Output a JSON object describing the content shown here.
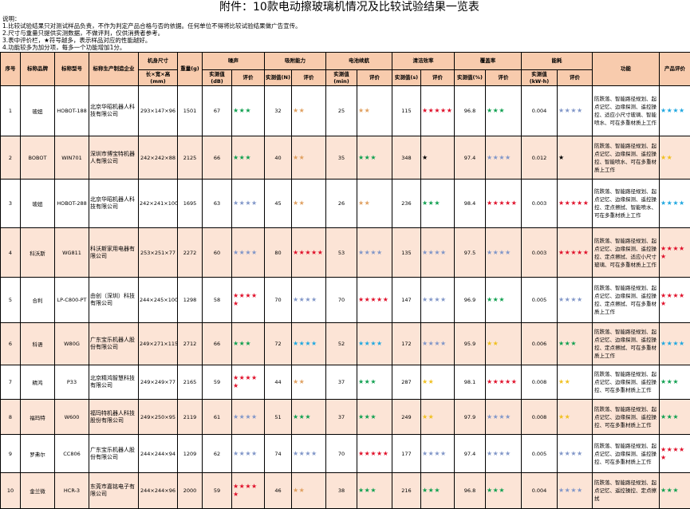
{
  "title": "附件：10款电动擦玻璃机情况及比较试验结果一览表",
  "notes": [
    "说明：",
    "1.比较试验结果只对测试样品负责，不作为判定产品合格与否的依据。任何单位不得将比较试验结果做广告宣传。",
    "2.尺寸与重量只提供实测数据，不做评判，仅供消费者参考。",
    "3.表中评价栏，★符号越多，表示样品对应的性能越好。",
    "4.功能较多为加分项，每多一个功能增加1分。"
  ],
  "headers": {
    "no": "序号",
    "brand": "标称品牌",
    "model": "标称型号",
    "maker": "标称生产制造企业",
    "size": "机身尺寸",
    "size_sub": "长×宽×高(mm)",
    "weight": "重量(g)",
    "noise": "噪声",
    "suction": "吸附能力",
    "battery": "电池续航",
    "clean": "清洁效率",
    "coverage": "覆盖率",
    "energy": "能耗",
    "func": "功能",
    "product": "产品评价",
    "measured_db": "实测值(dB)",
    "measured_n": "实测值(N)",
    "measured_min": "实测值(min)",
    "measured_s": "实测值(s)",
    "measured_pct": "实测值(%)",
    "measured_kwh": "实测值(kW·h)",
    "rating": "评价"
  },
  "star_symbol": "★",
  "star_colors": {
    "k": "#000000",
    "t": "#e0a060",
    "g": "#10a050",
    "s": "#8096c8",
    "r": "#e0102a",
    "y": "#f0c020",
    "c": "#20a8e0"
  },
  "rows": [
    {
      "no": "1",
      "brand": "玻妞",
      "model": "HOBOT-188",
      "maker": "北京华昭机器人科技有限公司",
      "size": "293×147×96",
      "weight": "1501",
      "noise": "67",
      "noise_r": [
        3,
        "g"
      ],
      "suction": "32",
      "suction_r": [
        2,
        "t"
      ],
      "battery": "25",
      "battery_r": [
        2,
        "t"
      ],
      "clean": "115",
      "clean_r": [
        5,
        "r"
      ],
      "coverage": "96.8",
      "coverage_r": [
        3,
        "g"
      ],
      "energy": "0.004",
      "energy_r": [
        4,
        "s"
      ],
      "func": "防跌落、智能路径规划、起点记忆、边缘探测、遥控操控、适应小尺寸玻璃、智能喷水、可在多重材质上工作",
      "product_r": [
        4,
        "c"
      ]
    },
    {
      "no": "2",
      "brand": "BOBOT",
      "model": "WIN701",
      "maker": "深圳市博宝特机器人有限公司",
      "size": "242×242×88",
      "weight": "2125",
      "noise": "66",
      "noise_r": [
        3,
        "g"
      ],
      "suction": "40",
      "suction_r": [
        2,
        "t"
      ],
      "battery": "35",
      "battery_r": [
        3,
        "g"
      ],
      "clean": "348",
      "clean_r": [
        1,
        "k"
      ],
      "coverage": "97.4",
      "coverage_r": [
        4,
        "s"
      ],
      "energy": "0.012",
      "energy_r": [
        1,
        "k"
      ],
      "func": "防跌落、智能路径规划、起点记忆、边缘探测、遥控操控、智能喷水、可在多重材质上工作",
      "product_r": [
        2,
        "y"
      ]
    },
    {
      "no": "3",
      "brand": "玻妞",
      "model": "HOBOT-288",
      "maker": "北京华昭机器人科技有限公司",
      "size": "242×241×100",
      "weight": "1695",
      "noise": "63",
      "noise_r": [
        4,
        "s"
      ],
      "suction": "45",
      "suction_r": [
        2,
        "t"
      ],
      "battery": "26",
      "battery_r": [
        2,
        "t"
      ],
      "clean": "236",
      "clean_r": [
        3,
        "g"
      ],
      "coverage": "98.4",
      "coverage_r": [
        5,
        "r"
      ],
      "energy": "0.003",
      "energy_r": [
        5,
        "r"
      ],
      "func": "防跌落、智能路径规划、起点记忆、边缘探测、遥控操控、定点擦拭、智能喷水、可在多重材质上工作",
      "product_r": [
        4,
        "c"
      ]
    },
    {
      "no": "4",
      "brand": "科沃斯",
      "model": "WG811",
      "maker": "科沃斯家用电器有限公司",
      "size": "253×251×77",
      "weight": "2272",
      "noise": "60",
      "noise_r": [
        4,
        "s"
      ],
      "suction": "80",
      "suction_r": [
        5,
        "r"
      ],
      "battery": "53",
      "battery_r": [
        4,
        "s"
      ],
      "clean": "135",
      "clean_r": [
        4,
        "s"
      ],
      "coverage": "97.5",
      "coverage_r": [
        4,
        "s"
      ],
      "energy": "0.003",
      "energy_r": [
        5,
        "r"
      ],
      "func": "防跌落、智能路径规划、起点记忆、边缘探测、遥控操控、定点擦拭、适应小尺寸玻璃、可在多重材质上工作",
      "product_r": [
        5,
        "r"
      ]
    },
    {
      "no": "5",
      "brand": "合利",
      "model": "LP-C800-PT",
      "maker": "由创（深圳）科技有限公司",
      "size": "244×245×100",
      "weight": "1298",
      "noise": "58",
      "noise_r": [
        5,
        "r"
      ],
      "suction": "70",
      "suction_r": [
        4,
        "s"
      ],
      "battery": "70",
      "battery_r": [
        5,
        "r"
      ],
      "clean": "147",
      "clean_r": [
        4,
        "s"
      ],
      "coverage": "96.9",
      "coverage_r": [
        3,
        "g"
      ],
      "energy": "0.005",
      "energy_r": [
        4,
        "s"
      ],
      "func": "防跌落、智能路径规划、起点记忆、边缘探测、遥控操控、定点擦拭、可在多重材质上工作",
      "product_r": [
        5,
        "r"
      ]
    },
    {
      "no": "6",
      "brand": "科语",
      "model": "W80G",
      "maker": "广东宝乐机器人股份有限公司",
      "size": "249×271×115",
      "weight": "2712",
      "noise": "66",
      "noise_r": [
        3,
        "g"
      ],
      "suction": "72",
      "suction_r": [
        4,
        "c"
      ],
      "battery": "52",
      "battery_r": [
        4,
        "c"
      ],
      "clean": "172",
      "clean_r": [
        4,
        "s"
      ],
      "coverage": "95.9",
      "coverage_r": [
        2,
        "y"
      ],
      "energy": "0.006",
      "energy_r": [
        3,
        "g"
      ],
      "func": "防跌落、智能路径规划、起点记忆、边缘探测、遥控操控、定点擦拭、可在多重材质上工作",
      "product_r": [
        4,
        "c"
      ]
    },
    {
      "no": "7",
      "brand": "精鸿",
      "model": "P33",
      "maker": "北京精鸿智慧科技有限公司",
      "size": "249×249×77",
      "weight": "2165",
      "noise": "59",
      "noise_r": [
        5,
        "r"
      ],
      "suction": "44",
      "suction_r": [
        2,
        "t"
      ],
      "battery": "37",
      "battery_r": [
        3,
        "g"
      ],
      "clean": "287",
      "clean_r": [
        2,
        "y"
      ],
      "coverage": "98.1",
      "coverage_r": [
        5,
        "r"
      ],
      "energy": "0.008",
      "energy_r": [
        2,
        "y"
      ],
      "func": "防跌落、智能路径规划、起点记忆、边缘探测、遥控操控、可在多重材质上工作",
      "product_r": [
        3,
        "g"
      ]
    },
    {
      "no": "8",
      "brand": "福玛特",
      "model": "W600",
      "maker": "福玛特机器人科技股份有限公司",
      "size": "249×250×95",
      "weight": "2119",
      "noise": "61",
      "noise_r": [
        4,
        "s"
      ],
      "suction": "51",
      "suction_r": [
        3,
        "g"
      ],
      "battery": "37",
      "battery_r": [
        3,
        "g"
      ],
      "clean": "249",
      "clean_r": [
        2,
        "y"
      ],
      "coverage": "97.9",
      "coverage_r": [
        4,
        "s"
      ],
      "energy": "0.008",
      "energy_r": [
        2,
        "y"
      ],
      "func": "防跌落、智能路径规划、起点记忆、边缘探测、遥控操控、可在多重材质上工作",
      "product_r": [
        3,
        "g"
      ]
    },
    {
      "no": "9",
      "brand": "罗弗尔",
      "model": "CC806",
      "maker": "广东宝乐机器人股份有限公司",
      "size": "244×244×94",
      "weight": "1209",
      "noise": "62",
      "noise_r": [
        4,
        "s"
      ],
      "suction": "74",
      "suction_r": [
        4,
        "s"
      ],
      "battery": "70",
      "battery_r": [
        5,
        "r"
      ],
      "clean": "177",
      "clean_r": [
        4,
        "s"
      ],
      "coverage": "97.4",
      "coverage_r": [
        4,
        "s"
      ],
      "energy": "0.005",
      "energy_r": [
        4,
        "s"
      ],
      "func": "防跌落、智能路径规划、起点记忆、边缘探测、遥控操控、可在多重材质上工作",
      "product_r": [
        5,
        "r"
      ]
    },
    {
      "no": "10",
      "brand": "金兰微",
      "model": "HCR-3",
      "maker": "东莞市嘉铭电子有限公司",
      "size": "244×244×96",
      "weight": "2000",
      "noise": "59",
      "noise_r": [
        5,
        "r"
      ],
      "suction": "46",
      "suction_r": [
        2,
        "t"
      ],
      "battery": "38",
      "battery_r": [
        3,
        "g"
      ],
      "clean": "216",
      "clean_r": [
        3,
        "g"
      ],
      "coverage": "96.8",
      "coverage_r": [
        3,
        "g"
      ],
      "energy": "0.004",
      "energy_r": [
        4,
        "s"
      ],
      "func": "防跌落、智能路径规划、起点记忆、遥控操控、定点擦拭",
      "product_r": [
        3,
        "g"
      ]
    }
  ]
}
